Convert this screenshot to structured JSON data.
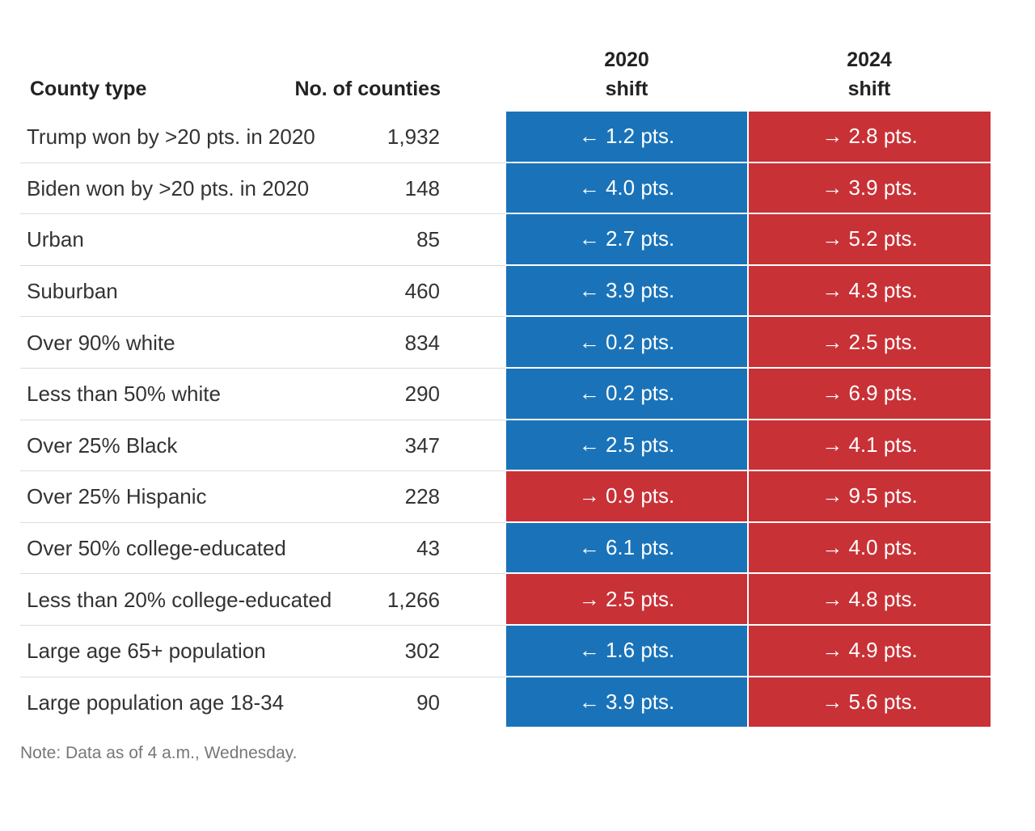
{
  "table": {
    "columns": [
      "County type",
      "No. of counties",
      "2020 shift",
      "2024 shift"
    ],
    "rows": [
      {
        "label": "Trump won by >20 pts. in 2020",
        "counties": "1,932",
        "shift_2020": {
          "text": "← 1.2 pts.",
          "color": "#1a73b9"
        },
        "shift_2024": {
          "text": "→ 2.8 pts.",
          "color": "#c83136"
        }
      },
      {
        "label": "Biden won by >20 pts. in 2020",
        "counties": "148",
        "shift_2020": {
          "text": "← 4.0 pts.",
          "color": "#1a73b9"
        },
        "shift_2024": {
          "text": "→ 3.9 pts.",
          "color": "#c83136"
        }
      },
      {
        "label": "Urban",
        "counties": "85",
        "shift_2020": {
          "text": "← 2.7 pts.",
          "color": "#1a73b9"
        },
        "shift_2024": {
          "text": "→ 5.2 pts.",
          "color": "#c83136"
        }
      },
      {
        "label": "Suburban",
        "counties": "460",
        "shift_2020": {
          "text": "← 3.9 pts.",
          "color": "#1a73b9"
        },
        "shift_2024": {
          "text": "→ 4.3 pts.",
          "color": "#c83136"
        }
      },
      {
        "label": "Over 90% white",
        "counties": "834",
        "shift_2020": {
          "text": "← 0.2 pts.",
          "color": "#1a73b9"
        },
        "shift_2024": {
          "text": "→ 2.5 pts.",
          "color": "#c83136"
        }
      },
      {
        "label": "Less than 50% white",
        "counties": "290",
        "shift_2020": {
          "text": "← 0.2 pts.",
          "color": "#1a73b9"
        },
        "shift_2024": {
          "text": "→ 6.9 pts.",
          "color": "#c83136"
        }
      },
      {
        "label": "Over 25% Black",
        "counties": "347",
        "shift_2020": {
          "text": "← 2.5 pts.",
          "color": "#1a73b9"
        },
        "shift_2024": {
          "text": "→ 4.1 pts.",
          "color": "#c83136"
        }
      },
      {
        "label": "Over 25% Hispanic",
        "counties": "228",
        "shift_2020": {
          "text": "→ 0.9 pts.",
          "color": "#c83136"
        },
        "shift_2024": {
          "text": "→ 9.5 pts.",
          "color": "#c83136"
        }
      },
      {
        "label": "Over 50% college-educated",
        "counties": "43",
        "shift_2020": {
          "text": "← 6.1 pts.",
          "color": "#1a73b9"
        },
        "shift_2024": {
          "text": "→ 4.0 pts.",
          "color": "#c83136"
        }
      },
      {
        "label": "Less than 20% college-educated",
        "counties": "1,266",
        "shift_2020": {
          "text": "→ 2.5 pts.",
          "color": "#c83136"
        },
        "shift_2024": {
          "text": "→ 4.8 pts.",
          "color": "#c83136"
        }
      },
      {
        "label": "Large age 65+ population",
        "counties": "302",
        "shift_2020": {
          "text": "← 1.6 pts.",
          "color": "#1a73b9"
        },
        "shift_2024": {
          "text": "→ 4.9 pts.",
          "color": "#c83136"
        }
      },
      {
        "label": "Large population age 18-34",
        "counties": "90",
        "shift_2020": {
          "text": "← 3.9 pts.",
          "color": "#1a73b9"
        },
        "shift_2024": {
          "text": "→ 5.6 pts.",
          "color": "#c83136"
        }
      }
    ],
    "note": "Note: Data as of 4 a.m., Wednesday."
  }
}
